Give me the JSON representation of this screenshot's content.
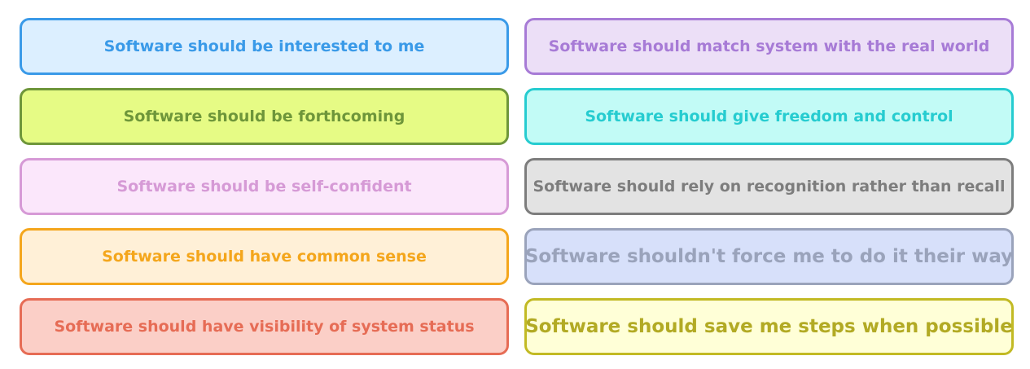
{
  "cards": [
    {
      "text": "Software should be interested to me"
    },
    {
      "text": "Software should match system with the real world"
    },
    {
      "text": "Software should be forthcoming"
    },
    {
      "text": "Software should give freedom and control"
    },
    {
      "text": "Software should be self-confident"
    },
    {
      "text": "Software should rely on recognition rather than recall"
    },
    {
      "text": "Software should have common sense"
    },
    {
      "text": "Software shouldn't force me to do it their way"
    },
    {
      "text": "Software should have visibility of system status"
    },
    {
      "text": "Software should save me steps when possible"
    }
  ],
  "colors": {
    "blue": "#3a9ae8",
    "purple": "#a77bd6",
    "lime": "#6e963a",
    "cyan": "#26ccd0",
    "pink": "#d69ad6",
    "gray": "#7d7d7d",
    "orange": "#f4a61c",
    "steel": "#9aa3bb",
    "red": "#e66c55",
    "yellow": "#c2ba24"
  }
}
